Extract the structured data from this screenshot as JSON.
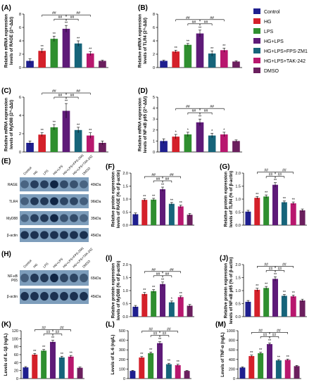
{
  "legend": {
    "entries": [
      "Control",
      "HG",
      "LPS",
      "HG+LPS",
      "HG+LPS+FPS-ZM1",
      "HG+LPS+TAK-242",
      "DMSO"
    ],
    "colors": [
      "#1f1f8f",
      "#d4202a",
      "#2f8f2f",
      "#5e1a78",
      "#16647a",
      "#b8176e",
      "#6b1f5e"
    ]
  },
  "chart_data": [
    {
      "panel": "(A)",
      "type": "bar",
      "ylabel_lines": [
        "Relative mRNA expression",
        "levels of RAGE (2^-ΔΔt)"
      ],
      "ylim": [
        0,
        8
      ],
      "yticks": [
        0,
        2,
        4,
        6,
        8
      ],
      "values": [
        1.0,
        2.5,
        4.3,
        5.8,
        3.6,
        2.1,
        1.0
      ],
      "errors": [
        0.3,
        0.3,
        0.4,
        0.5,
        0.4,
        0.3,
        0.1
      ],
      "marks": [
        "",
        "**",
        "**",
        "**",
        "**",
        "**",
        ""
      ],
      "brackets": [
        {
          "from": 1,
          "to": 3,
          "level": 0,
          "label": "##"
        },
        {
          "from": 2,
          "to": 3,
          "level": 1,
          "label": "##"
        },
        {
          "from": 3,
          "to": 4,
          "level": 1,
          "label": "##"
        },
        {
          "from": 3,
          "to": 5,
          "level": 0,
          "label": "##"
        }
      ]
    },
    {
      "panel": "(B)",
      "type": "bar",
      "ylabel_lines": [
        "Relative mRNA expression",
        "levels of TLR4 (2^-ΔΔt)"
      ],
      "ylim": [
        0,
        8
      ],
      "yticks": [
        0,
        2,
        4,
        6,
        8
      ],
      "values": [
        1.0,
        2.4,
        3.4,
        5.1,
        2.1,
        2.6,
        0.9
      ],
      "errors": [
        0.1,
        0.2,
        0.2,
        0.5,
        0.4,
        0.3,
        0.1
      ],
      "marks": [
        "",
        "**",
        "**",
        "**",
        "**",
        "**",
        ""
      ],
      "brackets": [
        {
          "from": 1,
          "to": 3,
          "level": 0,
          "label": "##"
        },
        {
          "from": 2,
          "to": 3,
          "level": 1,
          "label": "##"
        },
        {
          "from": 3,
          "to": 4,
          "level": 1,
          "label": "##"
        },
        {
          "from": 3,
          "to": 5,
          "level": 0,
          "label": "##"
        }
      ]
    },
    {
      "panel": "(C)",
      "type": "bar",
      "ylabel_lines": [
        "Relative mRNA expression",
        "levels of MyD88 (2^-ΔΔt)"
      ],
      "ylim": [
        0,
        6
      ],
      "yticks": [
        0,
        2,
        4,
        6
      ],
      "values": [
        1.0,
        1.9,
        2.7,
        4.5,
        2.4,
        1.8,
        1.0
      ],
      "errors": [
        0.2,
        0.2,
        0.3,
        0.8,
        0.3,
        0.3,
        0.2
      ],
      "marks": [
        "",
        "**",
        "**",
        "**",
        "**",
        "**",
        ""
      ],
      "brackets": [
        {
          "from": 1,
          "to": 3,
          "level": 0,
          "label": "##"
        },
        {
          "from": 2,
          "to": 3,
          "level": 1,
          "label": "##"
        },
        {
          "from": 3,
          "to": 4,
          "level": 1,
          "label": "##"
        },
        {
          "from": 3,
          "to": 5,
          "level": 0,
          "label": "##"
        }
      ]
    },
    {
      "panel": "(D)",
      "type": "bar",
      "ylabel_lines": [
        "Relative mRNA expression",
        "levels of NF-κB p65 (2^-ΔΔt)"
      ],
      "ylim": [
        0,
        5
      ],
      "yticks": [
        0,
        1,
        2,
        3,
        4,
        5
      ],
      "values": [
        1.0,
        1.4,
        1.6,
        2.7,
        1.5,
        1.6,
        1.0
      ],
      "errors": [
        0.2,
        0.2,
        0.2,
        0.3,
        0.2,
        0.2,
        0.1
      ],
      "marks": [
        "",
        "*",
        "*",
        "**",
        "*",
        "*",
        ""
      ],
      "brackets": [
        {
          "from": 1,
          "to": 3,
          "level": 0,
          "label": "##"
        },
        {
          "from": 2,
          "to": 3,
          "level": 1,
          "label": "##"
        },
        {
          "from": 3,
          "to": 4,
          "level": 1,
          "label": "##"
        },
        {
          "from": 3,
          "to": 5,
          "level": 0,
          "label": "##"
        }
      ]
    },
    {
      "panel": "(F)",
      "type": "bar",
      "ylabel_lines": [
        "Relative protein expression",
        "levels of RAGE (% of β-actin)"
      ],
      "ylim": [
        0,
        2.0
      ],
      "yticks": [
        0.0,
        0.5,
        1.0,
        1.5,
        2.0
      ],
      "values": [
        0.42,
        0.97,
        0.98,
        1.38,
        0.82,
        0.72,
        0.4
      ],
      "errors": [
        0.05,
        0.05,
        0.05,
        0.08,
        0.05,
        0.05,
        0.05
      ],
      "marks": [
        "",
        "**",
        "**",
        "**",
        "**",
        "**",
        ""
      ],
      "brackets": [
        {
          "from": 1,
          "to": 3,
          "level": 0,
          "label": "##"
        },
        {
          "from": 2,
          "to": 3,
          "level": 1,
          "label": "##"
        },
        {
          "from": 3,
          "to": 4,
          "level": 1,
          "label": "##"
        },
        {
          "from": 3,
          "to": 5,
          "level": 0,
          "label": "##"
        }
      ]
    },
    {
      "panel": "(G)",
      "type": "bar",
      "ylabel_lines": [
        "Relative protein expression",
        "levels of TLR4 (% of β-actin)"
      ],
      "ylim": [
        0,
        2.0
      ],
      "yticks": [
        0.0,
        0.5,
        1.0,
        1.5,
        2.0
      ],
      "values": [
        0.52,
        1.05,
        1.1,
        1.55,
        0.88,
        0.84,
        0.57
      ],
      "errors": [
        0.05,
        0.05,
        0.06,
        0.08,
        0.05,
        0.05,
        0.05
      ],
      "marks": [
        "",
        "**",
        "**",
        "**",
        "**",
        "**",
        ""
      ],
      "brackets": [
        {
          "from": 1,
          "to": 3,
          "level": 0,
          "label": "##"
        },
        {
          "from": 2,
          "to": 3,
          "level": 1,
          "label": "##"
        },
        {
          "from": 3,
          "to": 4,
          "level": 1,
          "label": "##"
        },
        {
          "from": 3,
          "to": 5,
          "level": 0,
          "label": "##"
        }
      ]
    },
    {
      "panel": "(I)",
      "type": "bar",
      "ylabel_lines": [
        "Relative protein expression",
        "levels of MyD88 (% of β-actin)"
      ],
      "ylim": [
        0,
        2.0
      ],
      "yticks": [
        0.0,
        0.5,
        1.0,
        1.5,
        2.0
      ],
      "values": [
        0.38,
        0.87,
        0.98,
        1.25,
        0.55,
        0.75,
        0.42
      ],
      "errors": [
        0.05,
        0.06,
        0.06,
        0.08,
        0.05,
        0.05,
        0.05
      ],
      "marks": [
        "",
        "**",
        "**",
        "**",
        "*",
        "**",
        ""
      ],
      "brackets": [
        {
          "from": 1,
          "to": 3,
          "level": 0,
          "label": "##"
        },
        {
          "from": 2,
          "to": 3,
          "level": 1,
          "label": "##"
        },
        {
          "from": 3,
          "to": 4,
          "level": 1,
          "label": "##"
        },
        {
          "from": 3,
          "to": 5,
          "level": 0,
          "label": "##"
        }
      ]
    },
    {
      "panel": "(J)",
      "type": "bar",
      "ylabel_lines": [
        "Relative protein expression",
        "levels of NF-κB p65 (% of β-actin)"
      ],
      "ylim": [
        0,
        2.0
      ],
      "yticks": [
        0.0,
        0.5,
        1.0,
        1.5,
        2.0
      ],
      "values": [
        0.57,
        1.03,
        1.1,
        1.45,
        0.8,
        0.78,
        0.62
      ],
      "errors": [
        0.05,
        0.06,
        0.06,
        0.08,
        0.05,
        0.05,
        0.05
      ],
      "marks": [
        "",
        "**",
        "**",
        "**",
        "**",
        "**",
        ""
      ],
      "brackets": [
        {
          "from": 1,
          "to": 3,
          "level": 0,
          "label": "##"
        },
        {
          "from": 2,
          "to": 3,
          "level": 1,
          "label": "##"
        },
        {
          "from": 3,
          "to": 4,
          "level": 1,
          "label": "##"
        },
        {
          "from": 3,
          "to": 5,
          "level": 0,
          "label": "##"
        }
      ]
    },
    {
      "panel": "(K)",
      "type": "bar",
      "ylabel_lines": [
        "Levels of IL-1β (ng/L)"
      ],
      "ylim": [
        0,
        120
      ],
      "yticks": [
        0,
        20,
        40,
        60,
        80,
        100,
        120
      ],
      "values": [
        28,
        60,
        70,
        92,
        53,
        55,
        27
      ],
      "errors": [
        2,
        3,
        3,
        4,
        3,
        3,
        2
      ],
      "marks": [
        "",
        "**",
        "**",
        "**",
        "**",
        "**",
        ""
      ],
      "brackets": [
        {
          "from": 1,
          "to": 3,
          "level": 0,
          "label": "##"
        },
        {
          "from": 2,
          "to": 3,
          "level": 1,
          "label": "##"
        },
        {
          "from": 3,
          "to": 4,
          "level": 1,
          "label": "##"
        },
        {
          "from": 3,
          "to": 5,
          "level": 0,
          "label": "##"
        }
      ]
    },
    {
      "panel": "(L)",
      "type": "bar",
      "ylabel_lines": [
        "Levels of IL-6 (ng/L)"
      ],
      "ylim": [
        0,
        500
      ],
      "yticks": [
        0,
        100,
        200,
        300,
        400,
        500
      ],
      "values": [
        80,
        220,
        265,
        370,
        150,
        140,
        80
      ],
      "errors": [
        6,
        10,
        12,
        15,
        10,
        10,
        5
      ],
      "marks": [
        "",
        "**",
        "**",
        "**",
        "**",
        "**",
        ""
      ],
      "brackets": [
        {
          "from": 1,
          "to": 3,
          "level": 0,
          "label": "##"
        },
        {
          "from": 2,
          "to": 3,
          "level": 1,
          "label": "##"
        },
        {
          "from": 3,
          "to": 4,
          "level": 1,
          "label": "##"
        },
        {
          "from": 3,
          "to": 5,
          "level": 0,
          "label": "##"
        }
      ]
    },
    {
      "panel": "(M)",
      "type": "bar",
      "ylabel_lines": [
        "Levels of TNF-α (ng/L)"
      ],
      "ylim": [
        0,
        1000
      ],
      "yticks": [
        0,
        200,
        400,
        600,
        800,
        1000
      ],
      "values": [
        230,
        470,
        530,
        720,
        380,
        390,
        260
      ],
      "errors": [
        15,
        20,
        20,
        25,
        18,
        18,
        15
      ],
      "marks": [
        "",
        "**",
        "**",
        "**",
        "**",
        "**",
        ""
      ],
      "brackets": [
        {
          "from": 1,
          "to": 3,
          "level": 0,
          "label": "##"
        },
        {
          "from": 2,
          "to": 3,
          "level": 1,
          "label": "##"
        },
        {
          "from": 3,
          "to": 4,
          "level": 1,
          "label": "##"
        },
        {
          "from": 3,
          "to": 5,
          "level": 0,
          "label": "##"
        }
      ]
    }
  ],
  "blots": [
    {
      "panel": "(E)",
      "lane_labels": [
        "Control",
        "HG",
        "LPS",
        "HG+LPS",
        "HG+LPS+FPS-ZM1",
        "HG+LPS+TAK-242",
        "DMSO"
      ],
      "rows": [
        {
          "protein": "RAGE",
          "size": "40kDa",
          "intensity": [
            0.45,
            0.75,
            0.75,
            0.95,
            0.65,
            0.6,
            0.45
          ]
        },
        {
          "protein": "TLR4",
          "size": "96kDa",
          "intensity": [
            0.5,
            0.8,
            0.8,
            0.95,
            0.7,
            0.7,
            0.5
          ]
        },
        {
          "protein": "MyD88",
          "size": "35kDa",
          "intensity": [
            0.45,
            0.75,
            0.8,
            0.95,
            0.6,
            0.65,
            0.45
          ]
        },
        {
          "protein": "β-actin",
          "size": "45kDa",
          "intensity": [
            0.85,
            0.85,
            0.85,
            0.85,
            0.85,
            0.85,
            0.85
          ]
        }
      ]
    },
    {
      "panel": "(H)",
      "lane_labels": [
        "Control",
        "HG",
        "LPS",
        "HG+LPS",
        "HG+LPS+FPS-ZM1",
        "HG+LPS+TAK-242",
        "DMSO"
      ],
      "rows": [
        {
          "protein": "NF-κB P65",
          "size": "65kDa",
          "intensity": [
            0.5,
            0.8,
            0.8,
            0.95,
            0.7,
            0.7,
            0.55
          ]
        },
        {
          "protein": "β-actin",
          "size": "45kDa",
          "intensity": [
            0.85,
            0.85,
            0.85,
            0.85,
            0.85,
            0.85,
            0.85
          ]
        }
      ]
    }
  ]
}
